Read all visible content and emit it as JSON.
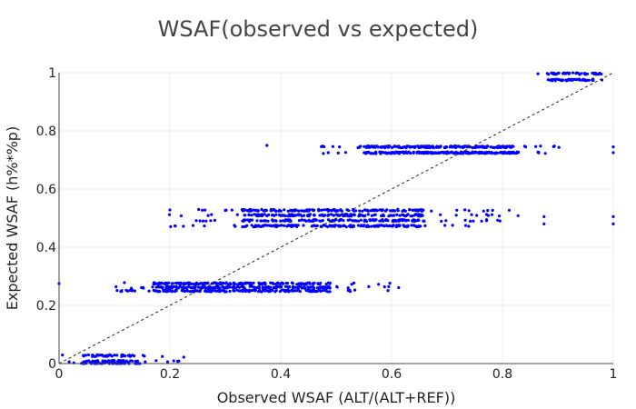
{
  "chart_data": {
    "type": "scatter",
    "title": "WSAF(observed vs expected)",
    "xlabel": "Observed WSAF (ALT/(ALT+REF))",
    "ylabel": "Expected WSAF (h%*%p)",
    "xlim": [
      0,
      1
    ],
    "ylim": [
      0,
      1
    ],
    "x_ticks": [
      "0",
      "0.2",
      "0.4",
      "0.6",
      "0.8",
      "1"
    ],
    "y_ticks": [
      "0",
      "0.2",
      "0.4",
      "0.6",
      "0.8",
      "1"
    ],
    "grid": true,
    "legend": "none",
    "marker_color": "#0000ff",
    "reference_line": {
      "style": "dotted",
      "color": "#222222",
      "from": [
        0,
        0
      ],
      "to": [
        1,
        1
      ]
    },
    "clusters": [
      {
        "y_levels": [
          0.997,
          0.975
        ],
        "x_range": [
          0.86,
          0.99
        ],
        "dense_range": [
          0.88,
          0.98
        ],
        "n": 90
      },
      {
        "y_levels": [
          0.745,
          0.725
        ],
        "x_range": [
          0.47,
          0.91
        ],
        "dense_range": [
          0.55,
          0.83
        ],
        "n": 420
      },
      {
        "y_levels": [
          0.527,
          0.51,
          0.492,
          0.473
        ],
        "x_range": [
          0.19,
          0.83
        ],
        "dense_range": [
          0.33,
          0.66
        ],
        "n": 620
      },
      {
        "y_levels": [
          0.275,
          0.262,
          0.25
        ],
        "x_range": [
          0.1,
          0.62
        ],
        "dense_range": [
          0.17,
          0.49
        ],
        "n": 520
      },
      {
        "y_levels": [
          0.027,
          0.008,
          0.0
        ],
        "x_range": [
          0.0,
          0.23
        ],
        "dense_range": [
          0.04,
          0.15
        ],
        "n": 130
      }
    ],
    "outliers": [
      {
        "x": 0.375,
        "y": 0.75
      },
      {
        "x": 0.0,
        "y": 0.275
      },
      {
        "x": 1.0,
        "y": 0.745
      },
      {
        "x": 1.0,
        "y": 0.725
      },
      {
        "x": 1.0,
        "y": 0.505
      },
      {
        "x": 1.0,
        "y": 0.48
      },
      {
        "x": 0.875,
        "y": 0.505
      },
      {
        "x": 0.875,
        "y": 0.48
      },
      {
        "x": 0.2,
        "y": 0.528
      },
      {
        "x": 0.225,
        "y": 0.022
      },
      {
        "x": 0.175,
        "y": 0.01
      }
    ]
  }
}
